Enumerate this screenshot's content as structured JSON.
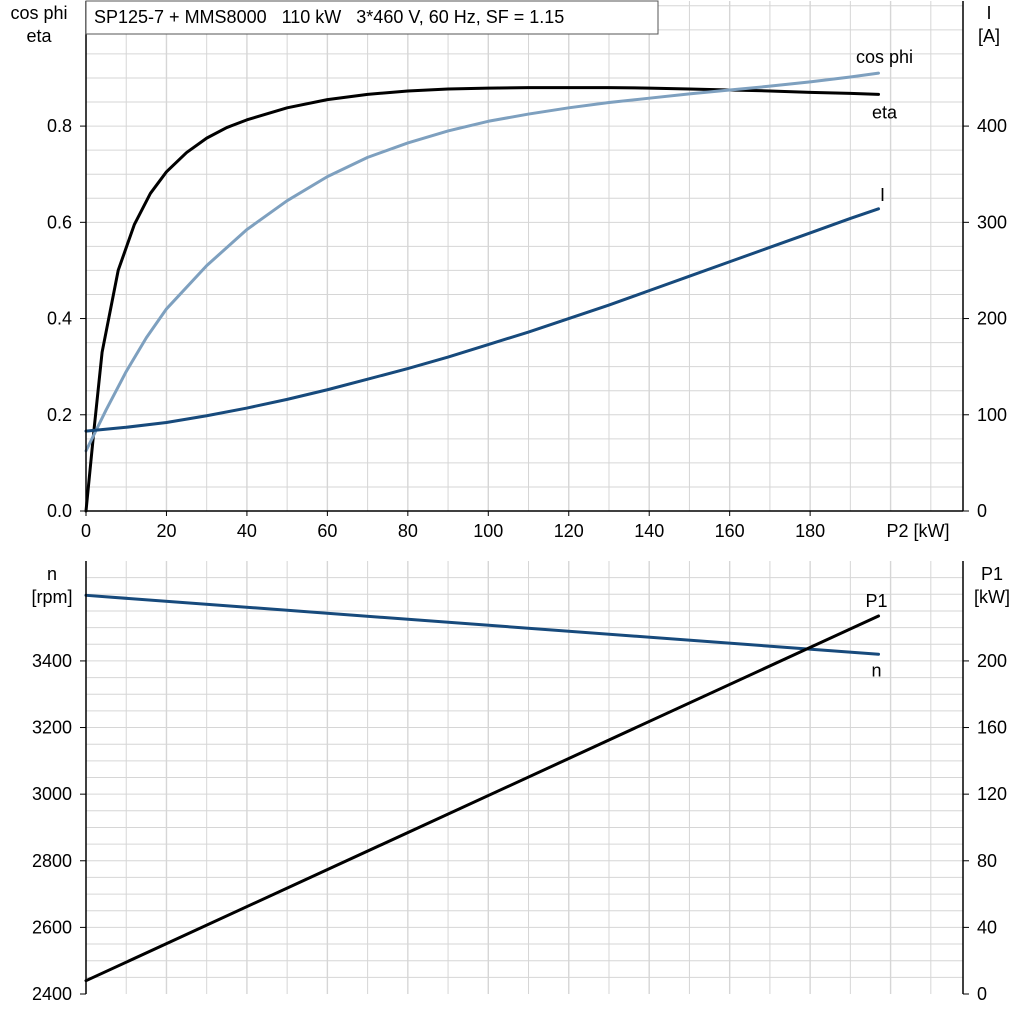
{
  "title": "SP125-7 + MMS8000   110 kW   3*460 V, 60 Hz, SF = 1.15",
  "colors": {
    "eta": "#000000",
    "cos_phi": "#7ea0bf",
    "I": "#174a7c",
    "n": "#174a7c",
    "P1": "#000000",
    "grid": "#d6d6d6"
  },
  "chart_data": [
    {
      "type": "line",
      "panel": "top",
      "x_label": "P2 [kW]",
      "x_range": [
        0,
        218
      ],
      "x_ticks": [
        0,
        20,
        40,
        60,
        80,
        100,
        120,
        140,
        160,
        180
      ],
      "y_left_label": [
        "cos phi",
        "eta"
      ],
      "y_left_range": [
        0,
        1.06
      ],
      "y_left_ticks": [
        "0.0",
        "0.2",
        "0.4",
        "0.6",
        "0.8"
      ],
      "y_left_tick_values": [
        0,
        0.2,
        0.4,
        0.6,
        0.8
      ],
      "y_right_label": [
        "I",
        "[A]"
      ],
      "y_right_range": [
        0,
        530
      ],
      "y_right_ticks": [
        "0",
        "100",
        "200",
        "300",
        "400"
      ],
      "y_right_tick_values": [
        0,
        100,
        200,
        300,
        400
      ],
      "grid": true,
      "series": [
        {
          "name": "eta",
          "axis": "left",
          "x": [
            0,
            2,
            4,
            8,
            12,
            16,
            20,
            25,
            30,
            35,
            40,
            50,
            60,
            70,
            80,
            90,
            100,
            110,
            120,
            130,
            140,
            150,
            160,
            170,
            180,
            190,
            197
          ],
          "y": [
            0.0,
            0.17,
            0.33,
            0.5,
            0.595,
            0.66,
            0.705,
            0.745,
            0.775,
            0.797,
            0.813,
            0.838,
            0.855,
            0.866,
            0.873,
            0.877,
            0.879,
            0.88,
            0.88,
            0.88,
            0.879,
            0.877,
            0.875,
            0.873,
            0.87,
            0.868,
            0.866
          ]
        },
        {
          "name": "cos phi",
          "axis": "left",
          "x": [
            0,
            5,
            10,
            15,
            20,
            30,
            40,
            50,
            60,
            70,
            80,
            90,
            100,
            110,
            120,
            130,
            140,
            150,
            160,
            170,
            180,
            190,
            197
          ],
          "y": [
            0.125,
            0.21,
            0.29,
            0.36,
            0.42,
            0.51,
            0.585,
            0.645,
            0.695,
            0.735,
            0.765,
            0.79,
            0.81,
            0.825,
            0.838,
            0.849,
            0.858,
            0.867,
            0.875,
            0.883,
            0.892,
            0.902,
            0.91
          ]
        },
        {
          "name": "I",
          "axis": "right",
          "x": [
            0,
            10,
            20,
            30,
            40,
            50,
            60,
            70,
            80,
            90,
            100,
            110,
            120,
            130,
            140,
            150,
            160,
            170,
            180,
            190,
            197
          ],
          "y": [
            83,
            87,
            92,
            99,
            107,
            116,
            126,
            137,
            148,
            160,
            173,
            186,
            200,
            214,
            229,
            244,
            259,
            274,
            289,
            304,
            314
          ]
        }
      ],
      "annotations": [
        {
          "text": "eta",
          "series": "eta"
        },
        {
          "text": "cos phi",
          "series": "cos phi"
        },
        {
          "text": "I",
          "series": "I"
        }
      ]
    },
    {
      "type": "line",
      "panel": "bottom",
      "x_range": [
        0,
        218
      ],
      "y_left_label": [
        "n",
        "[rpm]"
      ],
      "y_left_range": [
        2400,
        3700
      ],
      "y_left_ticks": [
        "2400",
        "2600",
        "2800",
        "3000",
        "3200",
        "3400"
      ],
      "y_left_tick_values": [
        2400,
        2600,
        2800,
        3000,
        3200,
        3400
      ],
      "y_right_label": [
        "P1",
        "[kW]"
      ],
      "y_right_range": [
        0,
        260
      ],
      "y_right_ticks": [
        "0",
        "40",
        "80",
        "120",
        "160",
        "200"
      ],
      "y_right_tick_values": [
        0,
        40,
        80,
        120,
        160,
        200
      ],
      "grid": true,
      "series": [
        {
          "name": "n",
          "axis": "left",
          "x": [
            0,
            197
          ],
          "y": [
            3597,
            3420
          ]
        },
        {
          "name": "P1",
          "axis": "right",
          "x": [
            0,
            197
          ],
          "y": [
            8,
            227
          ]
        }
      ],
      "annotations": [
        {
          "text": "n",
          "series": "n"
        },
        {
          "text": "P1",
          "series": "P1"
        }
      ]
    }
  ]
}
